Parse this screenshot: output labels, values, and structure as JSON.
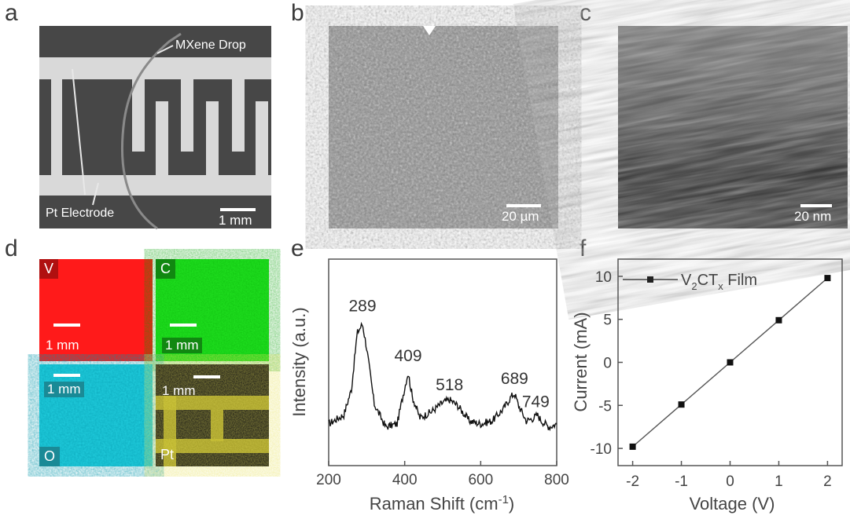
{
  "panels": {
    "a": {
      "label": "a",
      "annotations": {
        "mxene": "MXene Drop",
        "pt": "Pt Electrode"
      },
      "scale_bar": "1 mm"
    },
    "b": {
      "label": "b",
      "scale_bar": "20 µm"
    },
    "c": {
      "label": "c",
      "scale_bar": "20 nm"
    },
    "d": {
      "label": "d",
      "maps": [
        {
          "element": "V",
          "scale_bar": "1 mm",
          "color": "#ff1a1a"
        },
        {
          "element": "C",
          "scale_bar": "1 mm",
          "color": "#1ee61e"
        },
        {
          "element": "O",
          "scale_bar": "1 mm",
          "color": "#22c8d8"
        },
        {
          "element": "Pt",
          "scale_bar": "1 mm",
          "color": "#c8c020"
        }
      ]
    },
    "e": {
      "label": "e"
    },
    "f": {
      "label": "f"
    }
  },
  "chart_data": [
    {
      "type": "line",
      "panel": "e",
      "xlabel": "Raman Shift (cm",
      "xlabel_sup": "-1",
      "xlabel_end": ")",
      "ylabel": "Intensity (a.u.)",
      "xlim": [
        200,
        800
      ],
      "xticks": [
        "200",
        "400",
        "600",
        "800"
      ],
      "peak_labels": [
        "289",
        "409",
        "518",
        "689",
        "749"
      ],
      "peaks": [
        289,
        409,
        518,
        689,
        749
      ],
      "series": [
        {
          "x": [
            200,
            240,
            260,
            275,
            289,
            300,
            320,
            350,
            380,
            395,
            409,
            420,
            440,
            470,
            500,
            518,
            540,
            570,
            600,
            630,
            660,
            680,
            689,
            700,
            720,
            740,
            749,
            760,
            780,
            800
          ],
          "y": [
            0.12,
            0.18,
            0.35,
            0.72,
            0.78,
            0.62,
            0.25,
            0.1,
            0.12,
            0.3,
            0.46,
            0.3,
            0.16,
            0.2,
            0.26,
            0.28,
            0.24,
            0.14,
            0.12,
            0.14,
            0.22,
            0.3,
            0.32,
            0.24,
            0.14,
            0.16,
            0.18,
            0.14,
            0.1,
            0.12
          ]
        }
      ]
    },
    {
      "type": "line",
      "panel": "f",
      "xlabel": "Voltage (V)",
      "ylabel": "Current (mA)",
      "xlim": [
        -2.3,
        2.3
      ],
      "ylim": [
        -12,
        12
      ],
      "xticks": [
        "-2",
        "-1",
        "0",
        "1",
        "2"
      ],
      "yticks": [
        "10",
        "5",
        "0",
        "-5",
        "-10"
      ],
      "legend": "top-left",
      "series": [
        {
          "name": "V2CTx Film",
          "name_main": "V",
          "name_sub1": "2",
          "name_mid": "CT",
          "name_sub2": "x",
          "name_end": " Film",
          "x": [
            -2,
            -1,
            0,
            1,
            2
          ],
          "y": [
            -9.8,
            -4.9,
            0,
            4.9,
            9.8
          ]
        }
      ]
    }
  ]
}
